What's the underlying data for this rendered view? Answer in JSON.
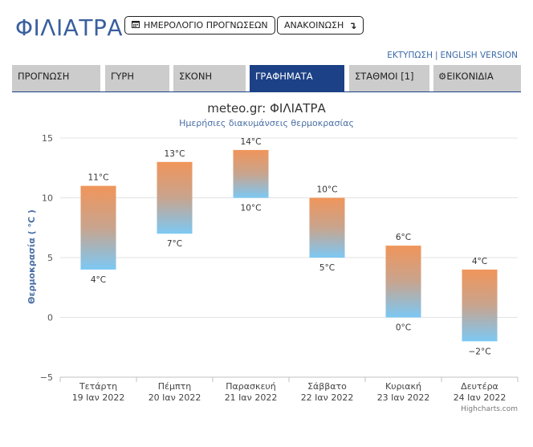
{
  "header": {
    "site_title": "ΦΙΛΙΑΤΡΑ",
    "calendar_button": "ΗΜΕΡΟΛΟΓΙΟ ΠΡΟΓΝΩΣΕΩΝ",
    "announcement_button": "ΑΝΑΚΟΙΝΩΣΗ",
    "print_link": "ΕΚΤΥΠΩΣΗ",
    "english_link": "ENGLISH VERSION"
  },
  "tabs": [
    {
      "label": "ΠΡΟΓΝΩΣΗ"
    },
    {
      "label": "ΓΥΡΗ"
    },
    {
      "label": "ΣΚΟΝΗ"
    },
    {
      "label": "ΓΡΑΦΗΜΑΤΑ"
    },
    {
      "label": "ΣΤΑΘΜΟΙ [1]"
    },
    {
      "label": "ΕΙΚΟΝΙΔΙΑ"
    }
  ],
  "chart": {
    "credit": "Highcharts.com"
  },
  "colors": {
    "brand": "#3a5f9e",
    "active_tab": "#1d4186",
    "bar_top": "#f0955a",
    "bar_bottom": "#7cc8f4"
  },
  "chart_data": {
    "type": "bar",
    "subtype": "columnrange",
    "title": "meteo.gr: ΦΙΛΙΑΤΡΑ",
    "subtitle": "Ημερήσιες διακυμάνσεις θερμοκρασίας",
    "ylabel": "Θερμοκρασία ( °C )",
    "ylim": [
      -5,
      15
    ],
    "yticks": [
      "−5",
      "0",
      "5",
      "10",
      "15"
    ],
    "grid": true,
    "legend": "none",
    "categories": [
      [
        "Τετάρτη",
        "19 Ιαν 2022"
      ],
      [
        "Πέμπτη",
        "20 Ιαν 2022"
      ],
      [
        "Παρασκευή",
        "21 Ιαν 2022"
      ],
      [
        "Σάββατο",
        "22 Ιαν 2022"
      ],
      [
        "Κυριακή",
        "23 Ιαν 2022"
      ],
      [
        "Δευτέρα",
        "24 Ιαν 2022"
      ]
    ],
    "min": [
      4,
      7,
      10,
      5,
      0,
      -2
    ],
    "max": [
      11,
      13,
      14,
      10,
      6,
      4
    ],
    "min_labels": [
      "4°C",
      "7°C",
      "10°C",
      "5°C",
      "0°C",
      "−2°C"
    ],
    "max_labels": [
      "11°C",
      "13°C",
      "14°C",
      "10°C",
      "6°C",
      "4°C"
    ]
  }
}
